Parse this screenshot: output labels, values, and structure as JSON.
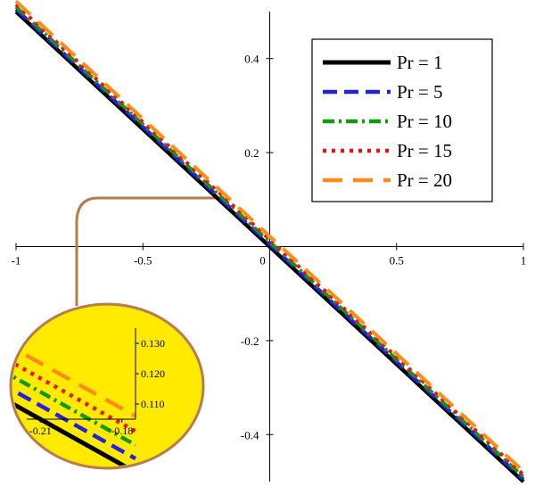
{
  "chart_data": {
    "type": "line",
    "title": "",
    "xlabel": "",
    "ylabel": "",
    "xlim": [
      -1,
      1
    ],
    "ylim": [
      -0.5,
      0.5
    ],
    "x_ticks": [
      {
        "value": -1,
        "label": "-1"
      },
      {
        "value": -0.5,
        "label": "-0.5"
      },
      {
        "value": 0,
        "label": "0"
      },
      {
        "value": 0.5,
        "label": "0.5"
      },
      {
        "value": 1,
        "label": "1"
      }
    ],
    "y_ticks": [
      {
        "value": 0.4,
        "label": "0.4"
      },
      {
        "value": 0.2,
        "label": "0.2"
      },
      {
        "value": -0.2,
        "label": "-0.2"
      },
      {
        "value": -0.4,
        "label": "-0.4"
      }
    ],
    "grid": false,
    "legend_position": "top-right",
    "series": [
      {
        "name": "Pr = 1",
        "color": "#000000",
        "dash": "solid",
        "x": [
          -1,
          1
        ],
        "y": [
          0.5,
          -0.5
        ]
      },
      {
        "name": "Pr = 5",
        "color": "#2222dd",
        "dash": "dashed",
        "x": [
          -1,
          1
        ],
        "y": [
          0.505,
          -0.495
        ]
      },
      {
        "name": "Pr = 10",
        "color": "#119911",
        "dash": "dashdot",
        "x": [
          -1,
          1
        ],
        "y": [
          0.51,
          -0.49
        ]
      },
      {
        "name": "Pr = 15",
        "color": "#ee1111",
        "dash": "dotted",
        "x": [
          -1,
          1
        ],
        "y": [
          0.515,
          -0.485
        ]
      },
      {
        "name": "Pr = 20",
        "color": "#ff8c1a",
        "dash": "longdash",
        "x": [
          -1,
          1
        ],
        "y": [
          0.522,
          -0.478
        ]
      }
    ],
    "inset": {
      "xlim": [
        -0.215,
        -0.175
      ],
      "ylim": [
        0.105,
        0.135
      ],
      "x_ticks": [
        {
          "value": -0.21,
          "label": "-0.21"
        },
        {
          "value": -0.18,
          "label": "-0.18"
        }
      ],
      "y_ticks": [
        {
          "value": 0.13,
          "label": "0.130"
        },
        {
          "value": 0.12,
          "label": "0.120"
        },
        {
          "value": 0.11,
          "label": "0.110"
        }
      ],
      "background": "#ffea00",
      "connector_color": "#b87c4c"
    }
  }
}
